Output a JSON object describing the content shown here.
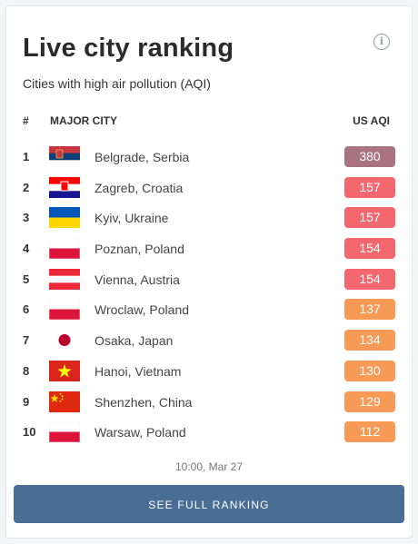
{
  "widget": {
    "title": "Live city ranking",
    "subtitle": "Cities with high air pollution (AQI)",
    "info_icon": "info-icon",
    "columns": {
      "rank": "#",
      "city": "MAJOR CITY",
      "aqi": "US AQI"
    },
    "rows": [
      {
        "rank": "1",
        "city": "Belgrade, Serbia",
        "aqi": "380",
        "flag": "serbia",
        "color": "#a97380"
      },
      {
        "rank": "2",
        "city": "Zagreb, Croatia",
        "aqi": "157",
        "flag": "croatia",
        "color": "#f2686e"
      },
      {
        "rank": "3",
        "city": "Kyiv, Ukraine",
        "aqi": "157",
        "flag": "ukraine",
        "color": "#f2686e"
      },
      {
        "rank": "4",
        "city": "Poznan, Poland",
        "aqi": "154",
        "flag": "poland",
        "color": "#f2686e"
      },
      {
        "rank": "5",
        "city": "Vienna, Austria",
        "aqi": "154",
        "flag": "austria",
        "color": "#f2686e"
      },
      {
        "rank": "6",
        "city": "Wroclaw, Poland",
        "aqi": "137",
        "flag": "poland",
        "color": "#f69a55"
      },
      {
        "rank": "7",
        "city": "Osaka, Japan",
        "aqi": "134",
        "flag": "japan",
        "color": "#f69a55"
      },
      {
        "rank": "8",
        "city": "Hanoi, Vietnam",
        "aqi": "130",
        "flag": "vietnam",
        "color": "#f69a55"
      },
      {
        "rank": "9",
        "city": "Shenzhen, China",
        "aqi": "129",
        "flag": "china",
        "color": "#f69a55"
      },
      {
        "rank": "10",
        "city": "Warsaw, Poland",
        "aqi": "112",
        "flag": "poland",
        "color": "#f69a55"
      }
    ],
    "timestamp": "10:00, Mar 27",
    "cta_label": "SEE FULL RANKING"
  }
}
